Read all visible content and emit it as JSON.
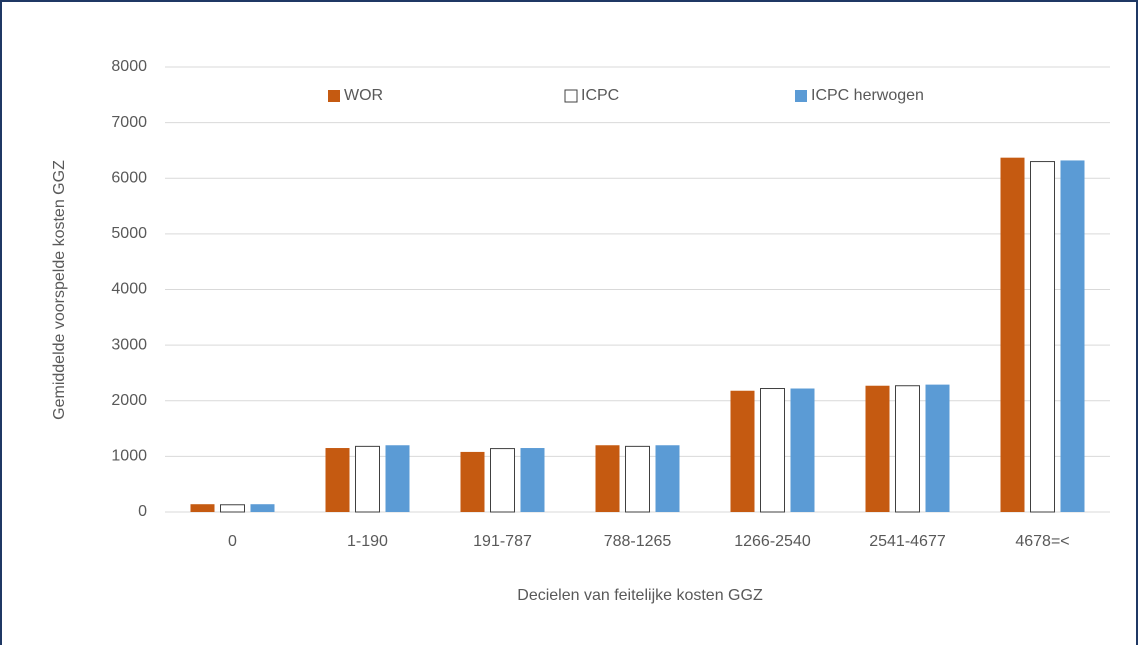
{
  "chart_data": {
    "type": "bar",
    "ylabel": "Gemiddelde voorspelde kosten GGZ",
    "xlabel": "Decielen van feitelijke kosten GGZ",
    "categories": [
      "0",
      "1-190",
      "191-787",
      "788-1265",
      "1266-2540",
      "2541-4677",
      "4678=<"
    ],
    "series": [
      {
        "name": "WOR",
        "color": "#c55a11",
        "values": [
          140,
          1150,
          1080,
          1200,
          2180,
          2270,
          6370
        ]
      },
      {
        "name": "ICPC",
        "color": "#ffffff",
        "edgecolor": "#404040",
        "values": [
          130,
          1180,
          1140,
          1180,
          2220,
          2270,
          6300
        ]
      },
      {
        "name": "ICPC herwogen",
        "color": "#5b9bd5",
        "values": [
          140,
          1200,
          1150,
          1200,
          2220,
          2290,
          6320
        ]
      }
    ],
    "ylim": [
      0,
      8000
    ],
    "yticks": [
      0,
      1000,
      2000,
      3000,
      4000,
      5000,
      6000,
      7000,
      8000
    ],
    "grid": true,
    "legend": "top"
  }
}
